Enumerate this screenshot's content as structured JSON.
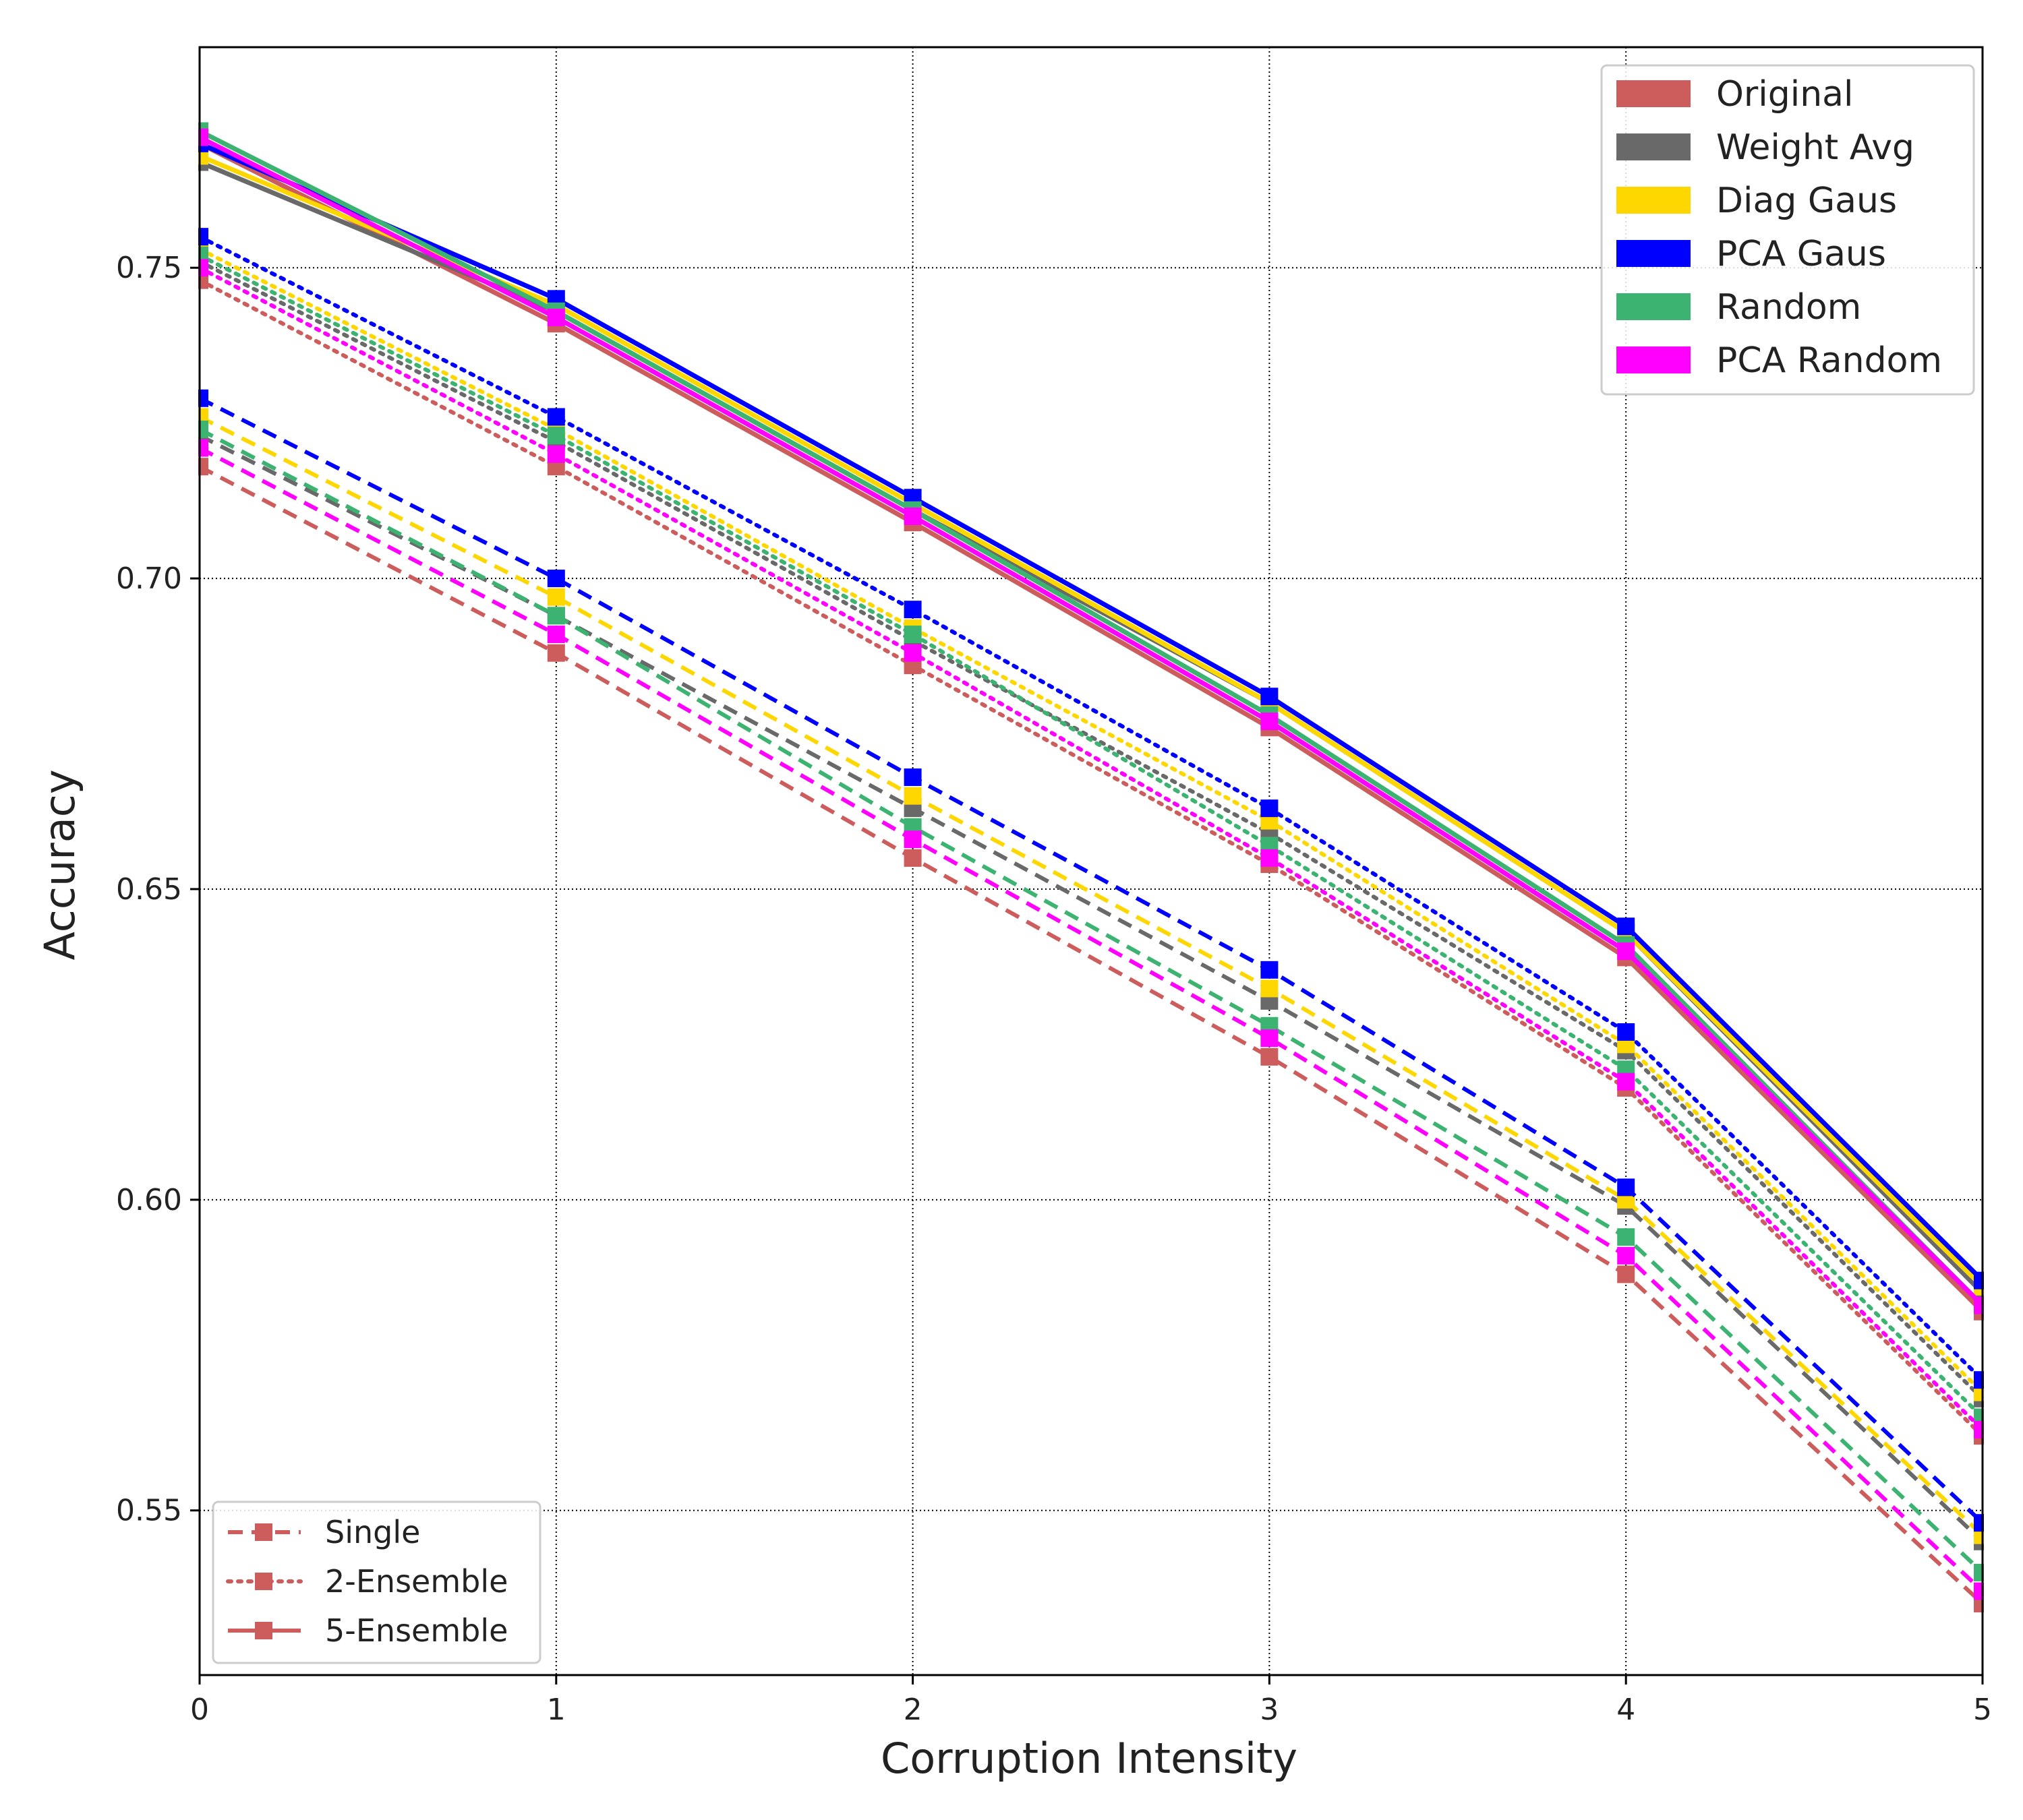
{
  "chart_data": {
    "type": "line",
    "title": "",
    "xlabel": "Corruption Intensity",
    "ylabel": "Accuracy",
    "x": [
      0,
      1,
      2,
      3,
      4,
      5
    ],
    "xlim": [
      0,
      5
    ],
    "ylim": [
      0.5235,
      0.7855
    ],
    "xticks": [
      "0",
      "1",
      "2",
      "3",
      "4",
      "5"
    ],
    "yticks": [
      0.55,
      0.6,
      0.65,
      0.7,
      0.75
    ],
    "ytick_labels": [
      "0.55",
      "0.60",
      "0.65",
      "0.70",
      "0.75"
    ],
    "grid": true,
    "methods": [
      {
        "name": "Original",
        "color": "#cd5c5c"
      },
      {
        "name": "Weight Avg",
        "color": "#696969"
      },
      {
        "name": "Diag Gaus",
        "color": "#ffd700"
      },
      {
        "name": "PCA Gaus",
        "color": "#0000ff"
      },
      {
        "name": "Random",
        "color": "#3cb371"
      },
      {
        "name": "PCA Random",
        "color": "#ff00ff"
      }
    ],
    "styles": [
      {
        "name": "Single",
        "dash": "dashed"
      },
      {
        "name": "2-Ensemble",
        "dash": "dotted"
      },
      {
        "name": "5-Ensemble",
        "dash": "solid"
      }
    ],
    "legend_methods_position": "top-right",
    "legend_styles_position": "bottom-left",
    "series": [
      {
        "method": "Original",
        "style": "Single",
        "values": [
          0.718,
          0.688,
          0.655,
          0.623,
          0.588,
          0.535
        ]
      },
      {
        "method": "Weight Avg",
        "style": "Single",
        "values": [
          0.723,
          0.694,
          0.663,
          0.632,
          0.599,
          0.545
        ]
      },
      {
        "method": "Diag Gaus",
        "style": "Single",
        "values": [
          0.726,
          0.697,
          0.665,
          0.634,
          0.6,
          0.546
        ]
      },
      {
        "method": "PCA Gaus",
        "style": "Single",
        "values": [
          0.729,
          0.7,
          0.668,
          0.637,
          0.602,
          0.548
        ]
      },
      {
        "method": "Random",
        "style": "Single",
        "values": [
          0.724,
          0.694,
          0.66,
          0.628,
          0.594,
          0.54
        ]
      },
      {
        "method": "PCA Random",
        "style": "Single",
        "values": [
          0.721,
          0.691,
          0.658,
          0.626,
          0.591,
          0.537
        ]
      },
      {
        "method": "Original",
        "style": "2-Ensemble",
        "values": [
          0.748,
          0.718,
          0.686,
          0.654,
          0.618,
          0.562
        ]
      },
      {
        "method": "Weight Avg",
        "style": "2-Ensemble",
        "values": [
          0.751,
          0.722,
          0.69,
          0.659,
          0.624,
          0.568
        ]
      },
      {
        "method": "Diag Gaus",
        "style": "2-Ensemble",
        "values": [
          0.753,
          0.724,
          0.692,
          0.661,
          0.625,
          0.569
        ]
      },
      {
        "method": "PCA Gaus",
        "style": "2-Ensemble",
        "values": [
          0.755,
          0.726,
          0.695,
          0.663,
          0.627,
          0.571
        ]
      },
      {
        "method": "Random",
        "style": "2-Ensemble",
        "values": [
          0.752,
          0.723,
          0.691,
          0.657,
          0.621,
          0.565
        ]
      },
      {
        "method": "PCA Random",
        "style": "2-Ensemble",
        "values": [
          0.75,
          0.72,
          0.688,
          0.655,
          0.619,
          0.563
        ]
      },
      {
        "method": "Original",
        "style": "5-Ensemble",
        "values": [
          0.77,
          0.741,
          0.709,
          0.676,
          0.639,
          0.582
        ]
      },
      {
        "method": "Weight Avg",
        "style": "5-Ensemble",
        "values": [
          0.767,
          0.743,
          0.711,
          0.68,
          0.643,
          0.585
        ]
      },
      {
        "method": "Diag Gaus",
        "style": "5-Ensemble",
        "values": [
          0.768,
          0.744,
          0.712,
          0.68,
          0.643,
          0.586
        ]
      },
      {
        "method": "PCA Gaus",
        "style": "5-Ensemble",
        "values": [
          0.77,
          0.745,
          0.713,
          0.681,
          0.644,
          0.587
        ]
      },
      {
        "method": "Random",
        "style": "5-Ensemble",
        "values": [
          0.772,
          0.743,
          0.711,
          0.678,
          0.641,
          0.583
        ]
      },
      {
        "method": "PCA Random",
        "style": "5-Ensemble",
        "values": [
          0.771,
          0.742,
          0.71,
          0.677,
          0.64,
          0.583
        ]
      }
    ]
  }
}
